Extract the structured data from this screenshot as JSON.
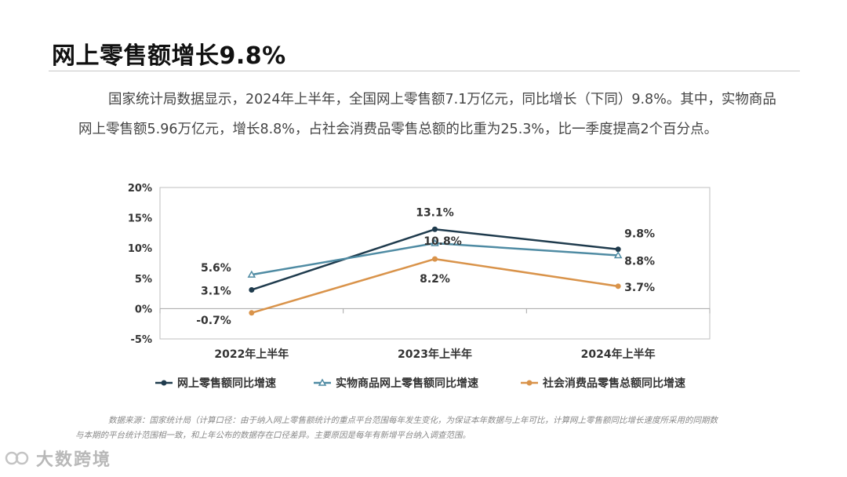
{
  "title": "网上零售额增长9.8%",
  "paragraph": "国家统计局数据显示，2024年上半年，全国网上零售额7.1万亿元，同比增长（下同）9.8%。其中，实物商品网上零售额5.96万亿元，增长8.8%，占社会消费品零售总额的比重为25.3%，比一季度提高2个百分点。",
  "chart_data": {
    "type": "line",
    "categories": [
      "2022年上半年",
      "2023年上半年",
      "2024年上半年"
    ],
    "ylim": [
      -5,
      20
    ],
    "yticks": [
      20,
      15,
      10,
      5,
      0,
      -5
    ],
    "ytick_labels": [
      "20%",
      "15%",
      "10%",
      "5%",
      "0%",
      "-5%"
    ],
    "legend_position": "bottom",
    "series": [
      {
        "name": "网上零售额同比增速",
        "values": [
          3.1,
          13.1,
          9.8
        ],
        "labels": [
          "3.1%",
          "13.1%",
          "9.8%"
        ],
        "color": "#1f3b4d",
        "marker": "circle"
      },
      {
        "name": "实物商品网上零售额同比增速",
        "values": [
          5.6,
          10.8,
          8.8
        ],
        "labels": [
          "5.6%",
          "10.8%",
          "8.8%"
        ],
        "color": "#4f8ba3",
        "marker": "triangle"
      },
      {
        "name": "社会消费品零售总额同比增速",
        "values": [
          -0.7,
          8.2,
          3.7
        ],
        "labels": [
          "-0.7%",
          "8.2%",
          "3.7%"
        ],
        "color": "#d9934a",
        "marker": "circle"
      }
    ]
  },
  "source": {
    "line1": "数据来源：国家统计局（计算口径：由于纳入网上零售额统计的重点平台范围每年发生变化，为保证本年数据与上年可比，计算网上零售额同比增长速度所采用的同期数",
    "line2": "与本期的平台统计范围相一致，和上年公布的数据存在口径差异。主要原因是每年有新增平台纳入调查范围。"
  },
  "watermark": "大数跨境"
}
